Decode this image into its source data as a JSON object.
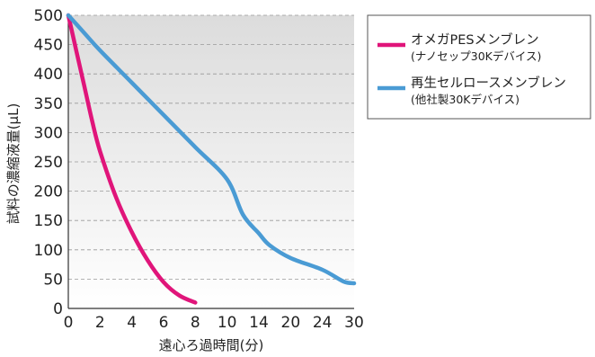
{
  "chart_data": {
    "type": "line",
    "xlabel": "遠心ろ過時間(分)",
    "ylabel": "試料の濃縮液量(μL)",
    "x_ticks": [
      "0",
      "2",
      "4",
      "6",
      "8",
      "10",
      "14",
      "20",
      "24",
      "30"
    ],
    "y_ticks": [
      "0",
      "50",
      "100",
      "150",
      "200",
      "250",
      "300",
      "350",
      "400",
      "450",
      "500"
    ],
    "ylim": [
      0,
      500
    ],
    "grid": "horizontal dashed",
    "legend_position": "right",
    "series": [
      {
        "name": "オメガPESメンブレン",
        "subname": "(ナノセップ30Kデバイス)",
        "color": "#e0157a",
        "points": [
          [
            0,
            500
          ],
          [
            0.5,
            440
          ],
          [
            1,
            380
          ],
          [
            1.5,
            320
          ],
          [
            2,
            268
          ],
          [
            3,
            190
          ],
          [
            4,
            130
          ],
          [
            5,
            82
          ],
          [
            6,
            45
          ],
          [
            7,
            22
          ],
          [
            8,
            10
          ]
        ]
      },
      {
        "name": "再生セルロースメンブレン",
        "subname": "(他社製30Kデバイス)",
        "color": "#4a9bd4",
        "points": [
          [
            0,
            500
          ],
          [
            1,
            470
          ],
          [
            2,
            440
          ],
          [
            4,
            385
          ],
          [
            6,
            330
          ],
          [
            8,
            275
          ],
          [
            10,
            220
          ],
          [
            12,
            160
          ],
          [
            14,
            128
          ],
          [
            16,
            108
          ],
          [
            20,
            86
          ],
          [
            24,
            66
          ],
          [
            28,
            46
          ],
          [
            30,
            43
          ]
        ]
      }
    ]
  }
}
